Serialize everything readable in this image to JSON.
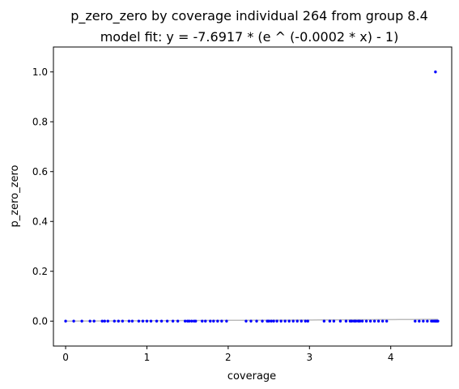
{
  "chart_data": {
    "type": "scatter",
    "title": "p_zero_zero by coverage individual 264 from group 8.4",
    "subtitle": "model fit: y = -7.6917 * (e ^ (-0.0002 * x) - 1)",
    "xlabel": "coverage",
    "ylabel": "p_zero_zero",
    "xlim": [
      -0.15,
      4.75
    ],
    "ylim": [
      -0.1,
      1.1
    ],
    "xticks": [
      0,
      1,
      2,
      3,
      4
    ],
    "yticks": [
      0.0,
      0.2,
      0.4,
      0.6,
      0.8,
      1.0
    ],
    "grid": false,
    "fit_coefficients": {
      "a": -7.6917,
      "b": -0.0002
    },
    "point_color": "#0000ff",
    "fit_color": "#bbbbbb",
    "points": [
      [
        0.0,
        0
      ],
      [
        0.1,
        0
      ],
      [
        0.2,
        0
      ],
      [
        0.3,
        0
      ],
      [
        0.35,
        0
      ],
      [
        0.45,
        0
      ],
      [
        0.48,
        0
      ],
      [
        0.52,
        0
      ],
      [
        0.6,
        0
      ],
      [
        0.65,
        0
      ],
      [
        0.7,
        0
      ],
      [
        0.78,
        0
      ],
      [
        0.82,
        0
      ],
      [
        0.9,
        0
      ],
      [
        0.95,
        0
      ],
      [
        1.0,
        0
      ],
      [
        1.05,
        0
      ],
      [
        1.12,
        0
      ],
      [
        1.18,
        0
      ],
      [
        1.25,
        0
      ],
      [
        1.32,
        0
      ],
      [
        1.38,
        0
      ],
      [
        1.47,
        0
      ],
      [
        1.5,
        0
      ],
      [
        1.52,
        0
      ],
      [
        1.55,
        0
      ],
      [
        1.58,
        0
      ],
      [
        1.6,
        0
      ],
      [
        1.68,
        0
      ],
      [
        1.72,
        0
      ],
      [
        1.78,
        0
      ],
      [
        1.82,
        0
      ],
      [
        1.87,
        0
      ],
      [
        1.92,
        0
      ],
      [
        1.98,
        0
      ],
      [
        2.22,
        0
      ],
      [
        2.28,
        0
      ],
      [
        2.35,
        0
      ],
      [
        2.42,
        0
      ],
      [
        2.48,
        0
      ],
      [
        2.5,
        0
      ],
      [
        2.53,
        0
      ],
      [
        2.56,
        0
      ],
      [
        2.6,
        0
      ],
      [
        2.65,
        0
      ],
      [
        2.7,
        0
      ],
      [
        2.75,
        0
      ],
      [
        2.8,
        0
      ],
      [
        2.85,
        0
      ],
      [
        2.9,
        0
      ],
      [
        2.95,
        0
      ],
      [
        2.98,
        0
      ],
      [
        3.18,
        0
      ],
      [
        3.25,
        0
      ],
      [
        3.3,
        0
      ],
      [
        3.38,
        0
      ],
      [
        3.45,
        0
      ],
      [
        3.5,
        0
      ],
      [
        3.52,
        0
      ],
      [
        3.55,
        0
      ],
      [
        3.57,
        0
      ],
      [
        3.6,
        0
      ],
      [
        3.62,
        0
      ],
      [
        3.65,
        0
      ],
      [
        3.7,
        0
      ],
      [
        3.75,
        0
      ],
      [
        3.8,
        0
      ],
      [
        3.85,
        0
      ],
      [
        3.9,
        0
      ],
      [
        3.95,
        0
      ],
      [
        4.3,
        0
      ],
      [
        4.35,
        0
      ],
      [
        4.4,
        0
      ],
      [
        4.45,
        0
      ],
      [
        4.5,
        0
      ],
      [
        4.52,
        0
      ],
      [
        4.54,
        0
      ],
      [
        4.55,
        0
      ],
      [
        4.56,
        0
      ],
      [
        4.57,
        0
      ],
      [
        4.58,
        0
      ],
      [
        4.55,
        1.0
      ]
    ]
  }
}
